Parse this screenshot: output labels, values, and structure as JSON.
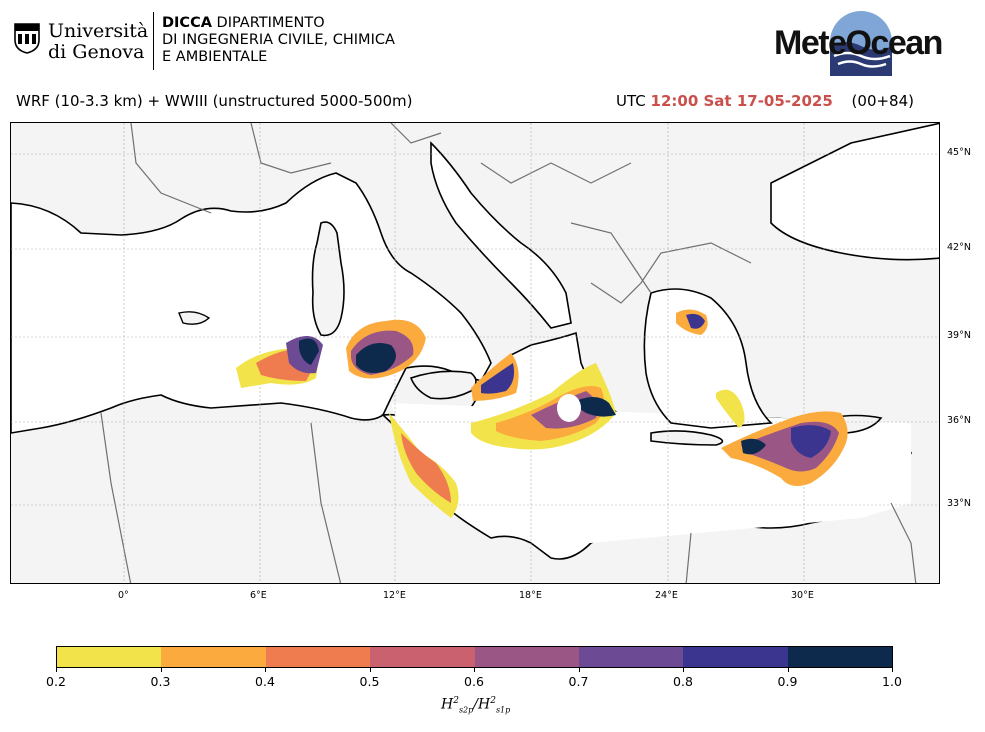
{
  "header": {
    "university_line1": "Università",
    "university_line2": "di Genova",
    "dept_line1_bold": "DICCA",
    "dept_line1_rest": " DIPARTIMENTO",
    "dept_line2": "DI INGEGNERIA CIVILE, CHIMICA",
    "dept_line3": "E AMBIENTALE",
    "brand": "MeteOcean",
    "model": "WRF (10-3.3 km) + WWIII (unstructured 5000-500m)",
    "utc_prefix": "UTC",
    "utc_time": "12:00 Sat 17-05-2025",
    "run_offset": "(00+84)"
  },
  "map": {
    "lon_labels": [
      "0°",
      "6°E",
      "12°E",
      "18°E",
      "24°E",
      "30°E"
    ],
    "lat_labels": [
      "45°N",
      "42°N",
      "39°N",
      "36°N",
      "33°N"
    ],
    "land_color": "#f4f4f4",
    "sea_color": "#ffffff"
  },
  "colorbar": {
    "ticks": [
      "0.2",
      "0.3",
      "0.4",
      "0.5",
      "0.6",
      "0.7",
      "0.8",
      "0.9",
      "1.0"
    ],
    "colors": [
      "#f2e34a",
      "#fbab3e",
      "#ef7c4f",
      "#c9626e",
      "#9a5786",
      "#6c4a94",
      "#3c3590",
      "#0d2a4d"
    ],
    "label_main": "H",
    "label_sup": "2",
    "label_sub_a": "s2p",
    "label_sep": "/H",
    "label_sub_b": "s1p"
  },
  "icons": {
    "crest": "university-crest-icon",
    "logo": "meteocean-globe-icon"
  }
}
